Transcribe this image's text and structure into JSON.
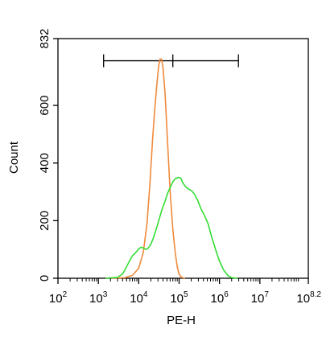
{
  "chart_data": {
    "type": "line",
    "title": "",
    "xlabel": "PE-H",
    "ylabel": "Count",
    "x_scale": "log",
    "xlim": [
      100,
      158489319
    ],
    "ylim": [
      0,
      832
    ],
    "x_ticks": [
      {
        "value": 100,
        "base": "10",
        "exp": "2"
      },
      {
        "value": 1000,
        "base": "10",
        "exp": "3"
      },
      {
        "value": 10000,
        "base": "10",
        "exp": "4"
      },
      {
        "value": 100000,
        "base": "10",
        "exp": "5"
      },
      {
        "value": 1000000,
        "base": "10",
        "exp": "6"
      },
      {
        "value": 10000000,
        "base": "10",
        "exp": "7"
      },
      {
        "value": 158489319,
        "base": "10",
        "exp": "8.2"
      }
    ],
    "y_ticks": [
      0,
      200,
      400,
      600,
      832
    ],
    "gate": {
      "from": 1350,
      "to": 2950000,
      "mid": 70000,
      "y": 755
    },
    "series": [
      {
        "color": "#f08a3c",
        "points": [
          [
            2000,
            0
          ],
          [
            4500,
            2
          ],
          [
            7000,
            10
          ],
          [
            10000,
            35
          ],
          [
            13000,
            90
          ],
          [
            16000,
            190
          ],
          [
            19000,
            330
          ],
          [
            22000,
            480
          ],
          [
            25000,
            590
          ],
          [
            28000,
            670
          ],
          [
            31000,
            735
          ],
          [
            34000,
            762
          ],
          [
            37000,
            760
          ],
          [
            40000,
            730
          ],
          [
            45000,
            640
          ],
          [
            52000,
            470
          ],
          [
            60000,
            300
          ],
          [
            70000,
            170
          ],
          [
            80000,
            90
          ],
          [
            90000,
            40
          ],
          [
            100000,
            14
          ],
          [
            115000,
            3
          ],
          [
            140000,
            0
          ]
        ]
      },
      {
        "color": "#33dd33",
        "points": [
          [
            1500,
            0
          ],
          [
            3000,
            3
          ],
          [
            4000,
            15
          ],
          [
            5000,
            40
          ],
          [
            6000,
            62
          ],
          [
            7000,
            78
          ],
          [
            8500,
            90
          ],
          [
            10000,
            102
          ],
          [
            11500,
            108
          ],
          [
            13000,
            105
          ],
          [
            15000,
            100
          ],
          [
            17000,
            104
          ],
          [
            20000,
            118
          ],
          [
            23000,
            140
          ],
          [
            27000,
            170
          ],
          [
            32000,
            205
          ],
          [
            38000,
            240
          ],
          [
            45000,
            268
          ],
          [
            52000,
            295
          ],
          [
            60000,
            315
          ],
          [
            70000,
            335
          ],
          [
            80000,
            345
          ],
          [
            95000,
            350
          ],
          [
            110000,
            348
          ],
          [
            125000,
            330
          ],
          [
            145000,
            318
          ],
          [
            170000,
            310
          ],
          [
            200000,
            305
          ],
          [
            240000,
            292
          ],
          [
            290000,
            270
          ],
          [
            350000,
            240
          ],
          [
            420000,
            220
          ],
          [
            520000,
            190
          ],
          [
            650000,
            140
          ],
          [
            800000,
            100
          ],
          [
            1000000,
            60
          ],
          [
            1250000,
            30
          ],
          [
            1600000,
            10
          ],
          [
            2000000,
            2
          ],
          [
            2800000,
            0
          ]
        ]
      }
    ]
  }
}
